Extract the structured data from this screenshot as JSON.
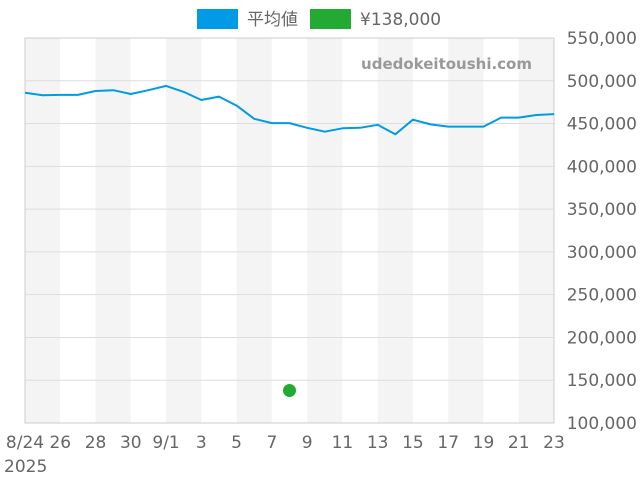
{
  "chart_data": {
    "type": "line",
    "legend": [
      {
        "label": "平均値",
        "color": "#009be4",
        "kind": "line"
      },
      {
        "label": "¥138,000",
        "color": "#22aa33",
        "kind": "point"
      }
    ],
    "watermark": "udedokeitoushi.com",
    "x_start_date": "2025-08-24",
    "x_end_date": "2025-09-23",
    "x_tick_labels": [
      "8/24",
      "26",
      "28",
      "30",
      "9/1",
      "3",
      "5",
      "7",
      "9",
      "11",
      "13",
      "15",
      "17",
      "19",
      "21",
      "23"
    ],
    "x_year_label": "2025",
    "ylim": [
      100000,
      550000
    ],
    "y_tick_labels": [
      "550,000",
      "500,000",
      "450,000",
      "400,000",
      "350,000",
      "300,000",
      "250,000",
      "200,000",
      "150,000",
      "100,000"
    ],
    "y_ticks": [
      550000,
      500000,
      450000,
      400000,
      350000,
      300000,
      250000,
      200000,
      150000,
      100000
    ],
    "grid": true,
    "legend_position": "top",
    "y_axis_position": "right",
    "series": [
      {
        "name": "平均値",
        "color": "#009be4",
        "points": [
          {
            "date": "2025-08-24",
            "y": 486000
          },
          {
            "date": "2025-08-25",
            "y": 483000
          },
          {
            "date": "2025-08-26",
            "y": 483500
          },
          {
            "date": "2025-08-27",
            "y": 483500
          },
          {
            "date": "2025-08-28",
            "y": 488000
          },
          {
            "date": "2025-08-29",
            "y": 489000
          },
          {
            "date": "2025-08-30",
            "y": 484500
          },
          {
            "date": "2025-08-31",
            "y": 489000
          },
          {
            "date": "2025-09-01",
            "y": 494000
          },
          {
            "date": "2025-09-02",
            "y": 487000
          },
          {
            "date": "2025-09-03",
            "y": 477500
          },
          {
            "date": "2025-09-04",
            "y": 481500
          },
          {
            "date": "2025-09-05",
            "y": 471000
          },
          {
            "date": "2025-09-06",
            "y": 455500
          },
          {
            "date": "2025-09-07",
            "y": 450500
          },
          {
            "date": "2025-09-08",
            "y": 450500
          },
          {
            "date": "2025-09-09",
            "y": 445000
          },
          {
            "date": "2025-09-10",
            "y": 440500
          },
          {
            "date": "2025-09-11",
            "y": 444500
          },
          {
            "date": "2025-09-12",
            "y": 445000
          },
          {
            "date": "2025-09-13",
            "y": 448500
          },
          {
            "date": "2025-09-14",
            "y": 437500
          },
          {
            "date": "2025-09-15",
            "y": 454500
          },
          {
            "date": "2025-09-16",
            "y": 449000
          },
          {
            "date": "2025-09-17",
            "y": 446500
          },
          {
            "date": "2025-09-18",
            "y": 446500
          },
          {
            "date": "2025-09-19",
            "y": 446500
          },
          {
            "date": "2025-09-20",
            "y": 457000
          },
          {
            "date": "2025-09-21",
            "y": 457000
          },
          {
            "date": "2025-09-22",
            "y": 460000
          },
          {
            "date": "2025-09-23",
            "y": 461000
          }
        ]
      }
    ],
    "points": [
      {
        "name": "¥138,000",
        "date": "2025-09-08",
        "y": 138000,
        "color": "#22aa33"
      }
    ]
  }
}
